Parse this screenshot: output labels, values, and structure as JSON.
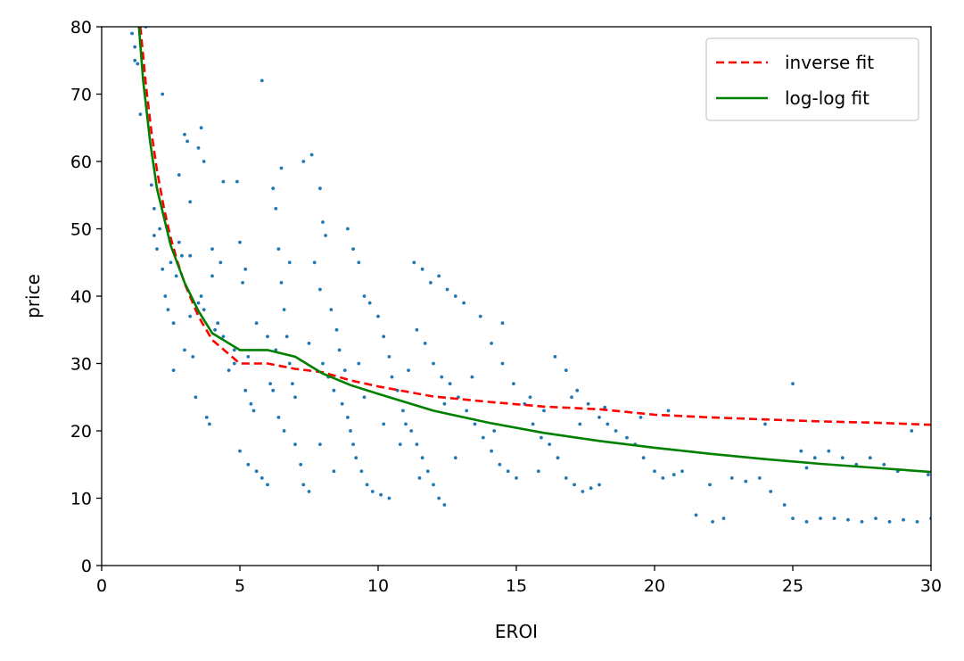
{
  "chart_data": {
    "type": "scatter",
    "xlabel": "EROI",
    "ylabel": "price",
    "xlim": [
      0,
      30
    ],
    "ylim": [
      0,
      80
    ],
    "xticks": [
      "0",
      "5",
      "10",
      "15",
      "20",
      "25",
      "30"
    ],
    "yticks": [
      "0",
      "10",
      "20",
      "30",
      "40",
      "50",
      "60",
      "70",
      "80"
    ],
    "grid": false,
    "legend_position": "top-right",
    "series": [
      {
        "type": "scatter",
        "color": "#1f77b4",
        "points": [
          [
            1.1,
            79
          ],
          [
            1.2,
            77
          ],
          [
            1.2,
            75
          ],
          [
            1.3,
            74.5
          ],
          [
            1.4,
            67
          ],
          [
            1.6,
            80
          ],
          [
            1.8,
            56.5
          ],
          [
            1.9,
            53
          ],
          [
            1.9,
            49
          ],
          [
            2.0,
            47
          ],
          [
            2.1,
            50
          ],
          [
            2.2,
            44
          ],
          [
            2.3,
            40
          ],
          [
            2.4,
            38
          ],
          [
            2.5,
            45
          ],
          [
            2.6,
            36
          ],
          [
            2.6,
            29
          ],
          [
            2.7,
            43
          ],
          [
            2.8,
            58
          ],
          [
            2.9,
            46
          ],
          [
            3.0,
            64
          ],
          [
            3.1,
            63
          ],
          [
            3.2,
            46
          ],
          [
            3.2,
            37
          ],
          [
            3.3,
            31
          ],
          [
            3.4,
            25
          ],
          [
            3.5,
            62
          ],
          [
            3.6,
            65
          ],
          [
            3.7,
            60
          ],
          [
            3.8,
            22
          ],
          [
            3.9,
            21
          ],
          [
            3.5,
            39
          ],
          [
            3.7,
            38
          ],
          [
            4.0,
            47
          ],
          [
            4.1,
            35
          ],
          [
            4.2,
            36
          ],
          [
            4.3,
            45
          ],
          [
            4.4,
            34
          ],
          [
            4.6,
            29
          ],
          [
            4.8,
            32
          ],
          [
            4.9,
            57
          ],
          [
            5.0,
            48
          ],
          [
            5.1,
            42
          ],
          [
            5.2,
            44
          ],
          [
            5.3,
            31
          ],
          [
            5.4,
            24
          ],
          [
            5.5,
            23
          ],
          [
            5.0,
            17
          ],
          [
            5.3,
            15
          ],
          [
            5.6,
            14
          ],
          [
            5.8,
            13
          ],
          [
            6.0,
            12
          ],
          [
            6.2,
            56
          ],
          [
            6.3,
            53
          ],
          [
            6.4,
            47
          ],
          [
            6.5,
            42
          ],
          [
            6.6,
            38
          ],
          [
            6.7,
            34
          ],
          [
            6.8,
            30
          ],
          [
            6.9,
            27
          ],
          [
            7.0,
            25
          ],
          [
            6.2,
            26
          ],
          [
            6.6,
            20
          ],
          [
            7.0,
            18
          ],
          [
            7.2,
            15
          ],
          [
            7.3,
            12
          ],
          [
            7.5,
            11
          ],
          [
            6.0,
            34
          ],
          [
            6.3,
            32
          ],
          [
            6.1,
            27
          ],
          [
            7.3,
            60
          ],
          [
            7.6,
            61
          ],
          [
            7.9,
            56
          ],
          [
            8.0,
            51
          ],
          [
            8.1,
            49
          ],
          [
            7.7,
            45
          ],
          [
            7.9,
            41
          ],
          [
            8.3,
            38
          ],
          [
            8.5,
            35
          ],
          [
            8.6,
            32
          ],
          [
            8.8,
            29
          ],
          [
            8.2,
            28
          ],
          [
            8.4,
            26
          ],
          [
            8.7,
            24
          ],
          [
            8.9,
            22
          ],
          [
            9.0,
            20
          ],
          [
            9.1,
            18
          ],
          [
            9.2,
            16
          ],
          [
            9.4,
            14
          ],
          [
            9.6,
            12
          ],
          [
            9.8,
            11
          ],
          [
            10.1,
            10.5
          ],
          [
            10.4,
            10
          ],
          [
            8.9,
            50
          ],
          [
            9.1,
            47
          ],
          [
            9.3,
            45
          ],
          [
            9.5,
            40
          ],
          [
            9.7,
            39
          ],
          [
            10.0,
            37
          ],
          [
            10.2,
            34
          ],
          [
            10.4,
            31
          ],
          [
            10.5,
            28
          ],
          [
            10.7,
            26
          ],
          [
            10.9,
            23
          ],
          [
            11.0,
            21
          ],
          [
            11.2,
            20
          ],
          [
            11.4,
            18
          ],
          [
            11.6,
            16
          ],
          [
            11.8,
            14
          ],
          [
            12.0,
            12
          ],
          [
            12.2,
            10
          ],
          [
            12.4,
            9
          ],
          [
            11.3,
            45
          ],
          [
            11.6,
            44
          ],
          [
            11.9,
            42
          ],
          [
            12.2,
            43
          ],
          [
            12.5,
            41
          ],
          [
            12.8,
            40
          ],
          [
            13.1,
            39
          ],
          [
            11.4,
            35
          ],
          [
            11.7,
            33
          ],
          [
            12.0,
            30
          ],
          [
            12.3,
            28
          ],
          [
            12.6,
            27
          ],
          [
            12.9,
            25
          ],
          [
            13.2,
            23
          ],
          [
            13.5,
            21
          ],
          [
            13.8,
            19
          ],
          [
            14.1,
            17
          ],
          [
            14.4,
            15
          ],
          [
            14.7,
            14
          ],
          [
            15.0,
            13
          ],
          [
            13.7,
            37
          ],
          [
            14.1,
            33
          ],
          [
            14.5,
            30
          ],
          [
            14.9,
            27
          ],
          [
            15.3,
            24
          ],
          [
            15.6,
            21
          ],
          [
            15.9,
            19
          ],
          [
            16.2,
            18
          ],
          [
            16.5,
            16
          ],
          [
            16.8,
            13
          ],
          [
            17.1,
            12
          ],
          [
            17.4,
            11
          ],
          [
            17.7,
            11.5
          ],
          [
            18.0,
            12
          ],
          [
            16.4,
            31
          ],
          [
            16.8,
            29
          ],
          [
            17.2,
            26
          ],
          [
            17.6,
            24
          ],
          [
            18.0,
            22
          ],
          [
            18.3,
            21
          ],
          [
            18.6,
            20
          ],
          [
            19.0,
            19
          ],
          [
            19.3,
            18
          ],
          [
            19.6,
            16
          ],
          [
            20.0,
            14
          ],
          [
            20.3,
            13
          ],
          [
            20.7,
            13.5
          ],
          [
            21.0,
            14
          ],
          [
            21.5,
            7.5
          ],
          [
            22.1,
            6.5
          ],
          [
            22.5,
            7
          ],
          [
            22.0,
            12
          ],
          [
            22.8,
            13
          ],
          [
            23.3,
            12.5
          ],
          [
            23.8,
            13
          ],
          [
            24.2,
            11
          ],
          [
            24.7,
            9
          ],
          [
            25.0,
            7
          ],
          [
            25.5,
            6.5
          ],
          [
            26.0,
            7
          ],
          [
            26.5,
            7
          ],
          [
            27.0,
            6.8
          ],
          [
            27.5,
            6.5
          ],
          [
            28.0,
            7
          ],
          [
            28.5,
            6.5
          ],
          [
            29.0,
            6.8
          ],
          [
            29.5,
            6.5
          ],
          [
            30.0,
            7
          ],
          [
            25.0,
            27
          ],
          [
            25.3,
            17
          ],
          [
            25.8,
            16
          ],
          [
            26.3,
            17
          ],
          [
            26.8,
            16
          ],
          [
            27.3,
            15
          ],
          [
            27.8,
            16
          ],
          [
            28.3,
            15
          ],
          [
            28.8,
            14
          ],
          [
            29.3,
            20
          ],
          [
            29.9,
            13.5
          ],
          [
            25.5,
            14.5
          ],
          [
            24.0,
            21
          ],
          [
            20.5,
            23
          ],
          [
            19.5,
            22
          ],
          [
            15.5,
            25
          ],
          [
            16.0,
            23
          ],
          [
            17.0,
            25
          ],
          [
            18.2,
            23.5
          ],
          [
            14.5,
            36
          ],
          [
            6.5,
            59
          ],
          [
            5.8,
            72
          ],
          [
            4.0,
            43
          ],
          [
            3.0,
            32
          ],
          [
            2.2,
            70
          ],
          [
            3.2,
            54
          ],
          [
            6.8,
            45
          ],
          [
            7.5,
            33
          ],
          [
            8.0,
            30
          ],
          [
            9.5,
            25
          ],
          [
            10.2,
            21
          ],
          [
            10.8,
            18
          ],
          [
            11.5,
            13
          ],
          [
            12.8,
            16
          ],
          [
            13.4,
            28
          ],
          [
            14.2,
            20
          ],
          [
            15.8,
            14
          ],
          [
            17.3,
            21
          ],
          [
            5.6,
            36
          ],
          [
            6.4,
            22
          ],
          [
            7.9,
            18
          ],
          [
            8.4,
            14
          ],
          [
            9.3,
            30
          ],
          [
            11.1,
            29
          ],
          [
            12.4,
            24
          ],
          [
            4.4,
            57
          ],
          [
            4.8,
            30
          ],
          [
            5.2,
            26
          ],
          [
            3.6,
            40
          ],
          [
            2.8,
            48
          ]
        ]
      },
      {
        "type": "line",
        "name": "inverse fit",
        "color": "#ff0000",
        "dash": true,
        "points": [
          [
            1.4,
            80
          ],
          [
            1.6,
            71.4
          ],
          [
            1.8,
            64.4
          ],
          [
            2.0,
            58.7
          ],
          [
            2.25,
            53.1
          ],
          [
            2.5,
            48.6
          ],
          [
            2.75,
            45.0
          ],
          [
            3.0,
            41.9
          ],
          [
            3.5,
            37.0
          ],
          [
            4.0,
            33.5
          ],
          [
            5.0,
            30.0
          ],
          [
            6.0,
            30.0
          ],
          [
            7.0,
            29.2
          ],
          [
            8.0,
            28.7
          ],
          [
            9.0,
            27.5
          ],
          [
            10.0,
            26.6
          ],
          [
            12.0,
            25.1
          ],
          [
            14.0,
            24.3
          ],
          [
            16.0,
            23.6
          ],
          [
            18.0,
            23.2
          ],
          [
            20.0,
            22.4
          ],
          [
            22.0,
            22.0
          ],
          [
            24.0,
            21.7
          ],
          [
            26.0,
            21.4
          ],
          [
            28.0,
            21.2
          ],
          [
            30.0,
            20.9
          ]
        ]
      },
      {
        "type": "line",
        "name": "log-log fit",
        "color": "#008000",
        "dash": false,
        "points": [
          [
            1.35,
            80
          ],
          [
            1.5,
            72.0
          ],
          [
            1.75,
            63.0
          ],
          [
            2.0,
            56.0
          ],
          [
            2.5,
            47.5
          ],
          [
            3.0,
            42.0
          ],
          [
            3.5,
            37.8
          ],
          [
            4.0,
            34.5
          ],
          [
            5.0,
            32.0
          ],
          [
            6.0,
            32.0
          ],
          [
            7.0,
            31.0
          ],
          [
            8.0,
            28.5
          ],
          [
            9.0,
            26.8
          ],
          [
            10.0,
            25.5
          ],
          [
            12.0,
            23.0
          ],
          [
            14.0,
            21.2
          ],
          [
            16.0,
            19.7
          ],
          [
            18.0,
            18.5
          ],
          [
            20.0,
            17.5
          ],
          [
            22.0,
            16.6
          ],
          [
            24.0,
            15.8
          ],
          [
            26.0,
            15.1
          ],
          [
            28.0,
            14.5
          ],
          [
            30.0,
            13.9
          ]
        ]
      }
    ]
  }
}
